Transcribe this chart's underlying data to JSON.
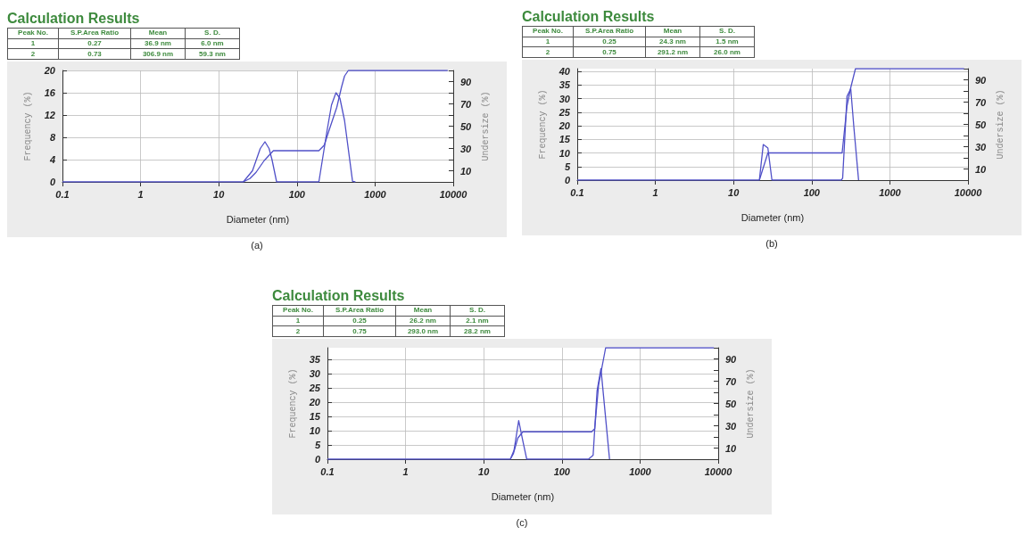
{
  "chart_data": [
    {
      "type": "line",
      "title": "Calculation Results",
      "subtitle": "(a)",
      "annotations": [
        "Peak No.",
        "S.P.Area Ratio",
        "Mean",
        "S. D.",
        "1",
        "0.27",
        "36.9 nm",
        "6.0 nm",
        "2",
        "0.73",
        "306.9 nm",
        "59.3 nm"
      ],
      "xlabel": "Diameter (nm)",
      "ylabel": "Frequency (%)",
      "y2label": "Undersize (%)",
      "log": "x",
      "grid": true,
      "marker": "none",
      "line_style": "solid",
      "xlim": [
        0.1,
        10000
      ],
      "xticks": [
        0.1,
        1,
        10,
        100,
        1000,
        10000
      ],
      "ylim": [
        0,
        20
      ],
      "yticks": [
        0,
        4,
        8,
        12,
        16,
        20
      ],
      "y2lim": [
        0,
        100
      ],
      "y2ticks": [
        {
          "value": 0,
          "label": null
        },
        10,
        {
          "value": 20,
          "label": null
        },
        30,
        {
          "value": 40,
          "label": null
        },
        50,
        {
          "value": 60,
          "label": null
        },
        70,
        {
          "value": 80,
          "label": null
        },
        90,
        {
          "value": 100,
          "label": null
        }
      ],
      "series": [
        {
          "color": "#5050c8",
          "x": [
            0.1,
            0.3,
            20.6,
            27,
            34,
            39,
            44,
            48,
            55,
            191,
            243,
            277,
            316,
            355,
            407,
            515,
            560
          ],
          "values": [
            0,
            0,
            0,
            2,
            6,
            7.2,
            6,
            4,
            0,
            0,
            9.2,
            13.8,
            16,
            15,
            11,
            0.1,
            0
          ]
        },
        {
          "color": "#5050c8",
          "axis": "y2",
          "x": [
            20.6,
            25,
            30,
            38,
            50,
            191,
            224,
            257,
            324,
            372,
            407,
            455,
            8500
          ],
          "values": [
            0,
            3,
            8.6,
            19,
            28,
            28,
            33,
            46,
            67,
            85,
            95,
            100,
            100
          ]
        }
      ]
    },
    {
      "type": "line",
      "title": "Calculation Results",
      "subtitle": "(b)",
      "annotations": [
        "Peak No.",
        "S.P.Area Ratio",
        "Mean",
        "S. D.",
        "1",
        "0.25",
        "24.3 nm",
        "1.5 nm",
        "2",
        "0.75",
        "291.2 nm",
        "26.0 nm"
      ],
      "xlabel": "Diameter (nm)",
      "ylabel": "Frequency (%)",
      "y2label": "Undersize (%)",
      "log": "x",
      "grid": true,
      "marker": "none",
      "line_style": "solid",
      "xlim": [
        0.1,
        10000
      ],
      "xticks": [
        0.1,
        1,
        10,
        100,
        1000,
        10000
      ],
      "ylim": [
        0,
        41
      ],
      "yticks": [
        0,
        5,
        10,
        15,
        20,
        25,
        30,
        35,
        40
      ],
      "y2lim": [
        0,
        100
      ],
      "y2ticks": [
        {
          "value": 0,
          "label": null
        },
        10,
        {
          "value": 20,
          "label": null
        },
        30,
        {
          "value": 40,
          "label": null
        },
        50,
        {
          "value": 60,
          "label": null
        },
        70,
        {
          "value": 80,
          "label": null
        },
        90,
        {
          "value": 100,
          "label": null
        }
      ],
      "series": [
        {
          "color": "#5050c8",
          "x": [
            0.1,
            0.3,
            21.4,
            24,
            27.5,
            31,
            240,
            249,
            283,
            316,
            347,
            398
          ],
          "values": [
            0,
            0,
            0,
            13.1,
            11.8,
            0,
            0,
            0.8,
            30.8,
            33.6,
            19.2,
            0
          ]
        },
        {
          "color": "#5050c8",
          "axis": "y2",
          "x": [
            21.4,
            27.5,
            245,
            283,
            316,
            363,
            8900
          ],
          "values": [
            0,
            24.4,
            24.4,
            66.6,
            83,
            100,
            100
          ]
        }
      ]
    },
    {
      "type": "line",
      "title": "Calculation Results",
      "subtitle": "(c)",
      "annotations": [
        "Peak No.",
        "S.P.Area Ratio",
        "Mean",
        "S. D.",
        "1",
        "0.25",
        "26.2 nm",
        "2.1 nm",
        "2",
        "0.75",
        "293.0 nm",
        "28.2 nm"
      ],
      "xlabel": "Diameter (nm)",
      "ylabel": "Frequency (%)",
      "y2label": "Undersize (%)",
      "log": "x",
      "grid": true,
      "marker": "none",
      "line_style": "solid",
      "xlim": [
        0.1,
        10000
      ],
      "xticks": [
        0.1,
        1,
        10,
        100,
        1000,
        10000
      ],
      "ylim": [
        0,
        39
      ],
      "yticks": [
        0,
        5,
        10,
        15,
        20,
        25,
        30,
        35
      ],
      "y2lim": [
        0,
        100
      ],
      "y2ticks": [
        {
          "value": 0,
          "label": null
        },
        10,
        {
          "value": 20,
          "label": null
        },
        30,
        {
          "value": 40,
          "label": null
        },
        50,
        {
          "value": 60,
          "label": null
        },
        70,
        {
          "value": 80,
          "label": null
        },
        90,
        {
          "value": 100,
          "label": null
        }
      ],
      "series": [
        {
          "color": "#5050c8",
          "x": [
            0.1,
            0.3,
            21.9,
            24.4,
            28,
            31.7,
            35.5,
            219,
            251,
            282,
            316,
            407
          ],
          "values": [
            0,
            0,
            0,
            3.1,
            13.5,
            6.3,
            0,
            0,
            1.4,
            23.9,
            31.7,
            0
          ]
        },
        {
          "color": "#5050c8",
          "axis": "y2",
          "x": [
            21.9,
            24,
            27.3,
            31.7,
            240,
            263,
            295,
            363,
            8800
          ],
          "values": [
            0,
            5.1,
            19,
            24.6,
            24.6,
            27.4,
            66.7,
            100,
            100
          ]
        }
      ]
    }
  ]
}
